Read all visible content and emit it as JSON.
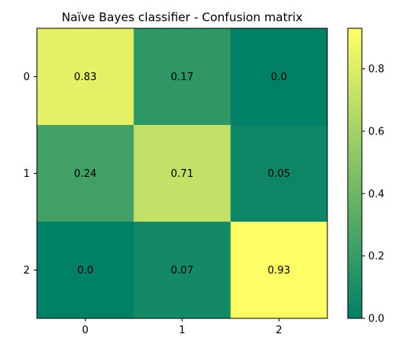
{
  "chart_data": {
    "type": "heatmap",
    "title": "Naïve Bayes classifier - Confusion matrix",
    "xlabel": "",
    "ylabel": "",
    "x_categories": [
      "0",
      "1",
      "2"
    ],
    "y_categories": [
      "0",
      "1",
      "2"
    ],
    "values": [
      [
        0.83,
        0.17,
        0.0
      ],
      [
        0.24,
        0.71,
        0.05
      ],
      [
        0.0,
        0.07,
        0.93
      ]
    ],
    "cell_labels": [
      [
        "0.83",
        "0.17",
        "0.0"
      ],
      [
        "0.24",
        "0.71",
        "0.05"
      ],
      [
        "0.0",
        "0.07",
        "0.93"
      ]
    ],
    "colormap": "summer",
    "vmin": 0.0,
    "vmax": 0.93,
    "colorbar": {
      "ticks": [
        0.0,
        0.2,
        0.4,
        0.6,
        0.8
      ],
      "tick_labels": [
        "0.0",
        "0.2",
        "0.4",
        "0.6",
        "0.8"
      ]
    },
    "grid": false
  }
}
